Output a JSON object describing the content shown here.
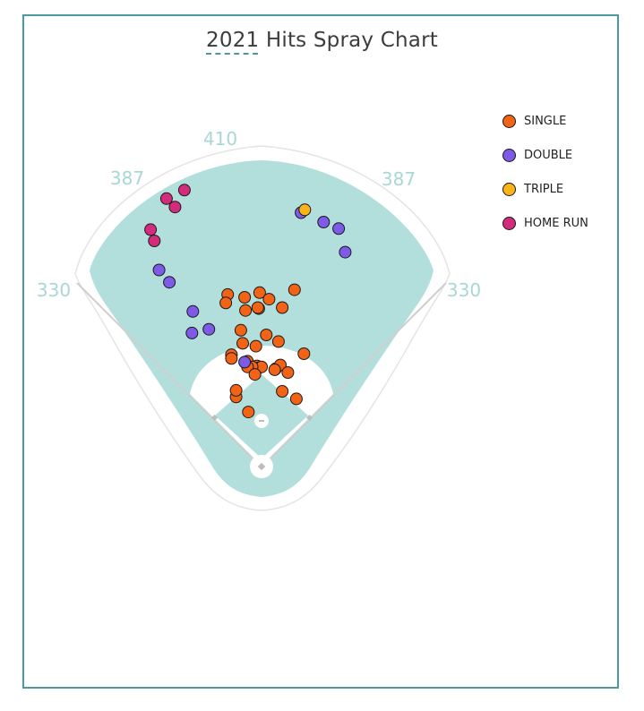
{
  "chart_data": {
    "type": "scatter",
    "title": "2021 Hits Spray Chart",
    "distances": {
      "left_line": "330",
      "left_center": "387",
      "center": "410",
      "right_center": "387",
      "right_line": "330"
    },
    "legend": [
      {
        "name": "SINGLE",
        "color": "#f36315"
      },
      {
        "name": "DOUBLE",
        "color": "#7e5be6"
      },
      {
        "name": "TRIPLE",
        "color": "#f9b41a"
      },
      {
        "name": "HOME RUN",
        "color": "#d42b7c"
      }
    ],
    "coordinate_note_units": "feet from home plate (x: + toward right field, y: toward center field)",
    "series": [
      {
        "name": "SINGLE",
        "points": [
          [
            5,
            140
          ],
          [
            -2,
            185
          ],
          [
            8,
            178
          ],
          [
            -3,
            168
          ],
          [
            -18,
            180
          ],
          [
            -17,
            166
          ],
          [
            -4,
            169
          ],
          [
            -22,
            145
          ],
          [
            -36,
            183
          ],
          [
            -38,
            174
          ],
          [
            35,
            188
          ],
          [
            22,
            169
          ],
          [
            -27,
            74
          ],
          [
            -27,
            81
          ],
          [
            -15,
            112
          ],
          [
            -5,
            107
          ],
          [
            -3,
            105
          ],
          [
            0,
            106
          ],
          [
            -10,
            106
          ],
          [
            -15,
            106
          ],
          [
            -32,
            119
          ],
          [
            -32,
            115
          ],
          [
            -14,
            58
          ],
          [
            15,
            104
          ],
          [
            20,
            108
          ],
          [
            28,
            100
          ],
          [
            45,
            120
          ],
          [
            37,
            72
          ],
          [
            18,
            133
          ],
          [
            14,
            103
          ],
          [
            22,
            80
          ],
          [
            -20,
            131
          ],
          [
            -7,
            98
          ],
          [
            -6,
            128
          ]
        ]
      },
      {
        "name": "DOUBLE",
        "points": [
          [
            -109,
            209
          ],
          [
            -98,
            196
          ],
          [
            -73,
            165
          ],
          [
            -74,
            142
          ],
          [
            -56,
            146
          ],
          [
            -18,
            111
          ],
          [
            42,
            270
          ],
          [
            66,
            260
          ],
          [
            82,
            253
          ],
          [
            89,
            228
          ]
        ]
      },
      {
        "name": "TRIPLE",
        "points": [
          [
            46,
            273
          ]
        ]
      },
      {
        "name": "HOME RUN",
        "points": [
          [
            -118,
            252
          ],
          [
            -114,
            240
          ],
          [
            -101,
            285
          ],
          [
            -92,
            276
          ],
          [
            -82,
            294
          ]
        ]
      }
    ]
  }
}
